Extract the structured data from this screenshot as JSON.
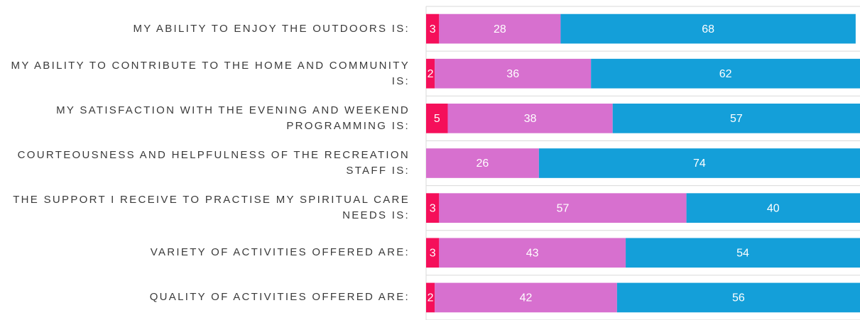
{
  "chart_data": {
    "type": "stacked-barh",
    "categories": [
      "MY ABILITY TO ENJOY THE OUTDOORS IS:",
      "MY ABILITY TO CONTRIBUTE TO THE HOME AND COMMUNITY IS:",
      "MY SATISFACTION WITH THE EVENING AND WEEKEND PROGRAMMING IS:",
      "COURTEOUSNESS AND HELPFULNESS OF THE RECREATION STAFF IS:",
      "THE SUPPORT I RECEIVE TO PRACTISE MY SPIRITUAL CARE NEEDS IS:",
      "VARIETY OF ACTIVITIES OFFERED ARE:",
      "QUALITY OF ACTIVITIES OFFERED ARE:"
    ],
    "series": [
      {
        "color": "#f50f5a",
        "values": [
          3,
          2,
          5,
          null,
          3,
          3,
          2
        ]
      },
      {
        "color": "#d770cf",
        "values": [
          28,
          36,
          38,
          26,
          57,
          43,
          42
        ]
      },
      {
        "color": "#149fd9",
        "values": [
          68,
          62,
          57,
          74,
          40,
          54,
          56
        ]
      }
    ],
    "xlim": [
      0,
      100
    ]
  }
}
